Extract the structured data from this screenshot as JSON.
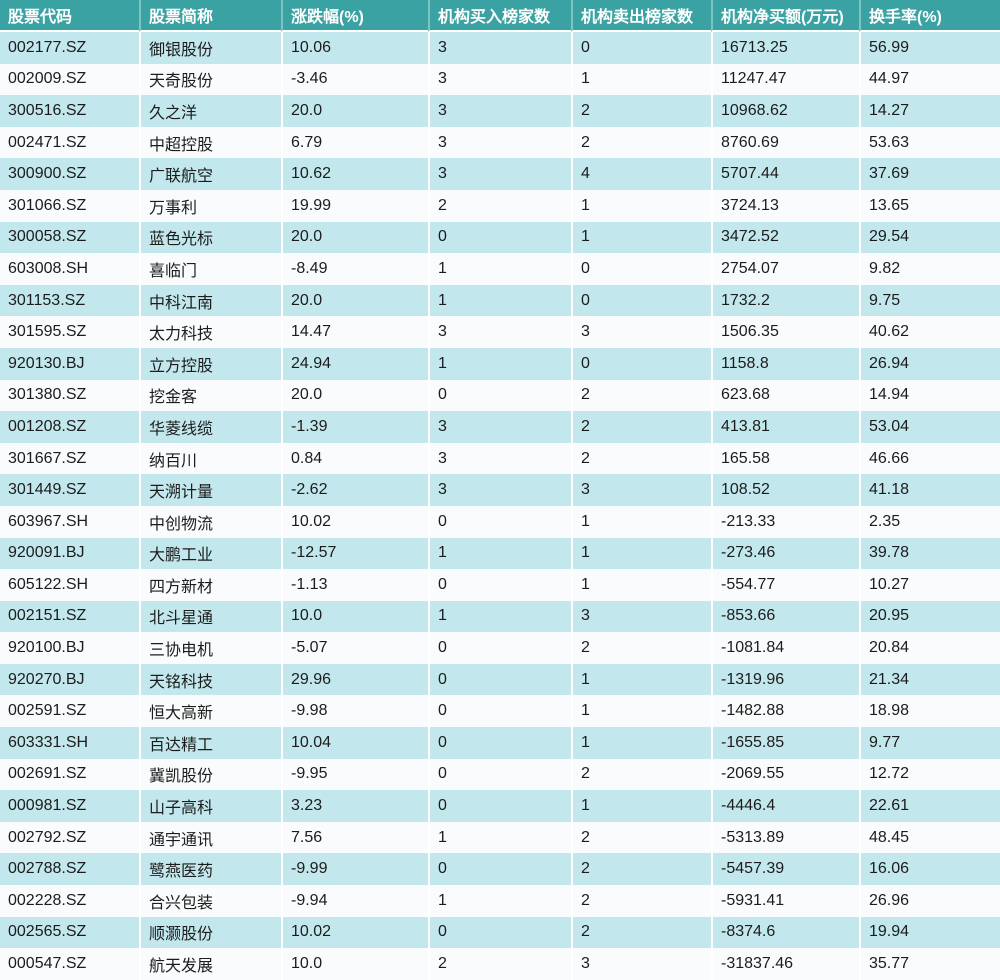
{
  "colors": {
    "header_bg": "#3aa2a2",
    "header_text": "#ffffff",
    "row_odd_bg": "#c2e7ec",
    "row_even_bg": "#f9fbfc",
    "body_text": "#1c1c1c",
    "cell_sep": "#ffffff"
  },
  "chart_data": {
    "type": "table",
    "title": "",
    "columns": [
      "股票代码",
      "股票简称",
      "涨跌幅(%)",
      "机构买入榜家数",
      "机构卖出榜家数",
      "机构净买额(万元)",
      "换手率(%)"
    ],
    "rows": [
      [
        "002177.SZ",
        "御银股份",
        "10.06",
        "3",
        "0",
        "16713.25",
        "56.99"
      ],
      [
        "002009.SZ",
        "天奇股份",
        "-3.46",
        "3",
        "1",
        "11247.47",
        "44.97"
      ],
      [
        "300516.SZ",
        "久之洋",
        "20.0",
        "3",
        "2",
        "10968.62",
        "14.27"
      ],
      [
        "002471.SZ",
        "中超控股",
        "6.79",
        "3",
        "2",
        "8760.69",
        "53.63"
      ],
      [
        "300900.SZ",
        "广联航空",
        "10.62",
        "3",
        "4",
        "5707.44",
        "37.69"
      ],
      [
        "301066.SZ",
        "万事利",
        "19.99",
        "2",
        "1",
        "3724.13",
        "13.65"
      ],
      [
        "300058.SZ",
        "蓝色光标",
        "20.0",
        "0",
        "1",
        "3472.52",
        "29.54"
      ],
      [
        "603008.SH",
        "喜临门",
        "-8.49",
        "1",
        "0",
        "2754.07",
        "9.82"
      ],
      [
        "301153.SZ",
        "中科江南",
        "20.0",
        "1",
        "0",
        "1732.2",
        "9.75"
      ],
      [
        "301595.SZ",
        "太力科技",
        "14.47",
        "3",
        "3",
        "1506.35",
        "40.62"
      ],
      [
        "920130.BJ",
        "立方控股",
        "24.94",
        "1",
        "0",
        "1158.8",
        "26.94"
      ],
      [
        "301380.SZ",
        "挖金客",
        "20.0",
        "0",
        "2",
        "623.68",
        "14.94"
      ],
      [
        "001208.SZ",
        "华菱线缆",
        "-1.39",
        "3",
        "2",
        "413.81",
        "53.04"
      ],
      [
        "301667.SZ",
        "纳百川",
        "0.84",
        "3",
        "2",
        "165.58",
        "46.66"
      ],
      [
        "301449.SZ",
        "天溯计量",
        "-2.62",
        "3",
        "3",
        "108.52",
        "41.18"
      ],
      [
        "603967.SH",
        "中创物流",
        "10.02",
        "0",
        "1",
        "-213.33",
        "2.35"
      ],
      [
        "920091.BJ",
        "大鹏工业",
        "-12.57",
        "1",
        "1",
        "-273.46",
        "39.78"
      ],
      [
        "605122.SH",
        "四方新材",
        "-1.13",
        "0",
        "1",
        "-554.77",
        "10.27"
      ],
      [
        "002151.SZ",
        "北斗星通",
        "10.0",
        "1",
        "3",
        "-853.66",
        "20.95"
      ],
      [
        "920100.BJ",
        "三协电机",
        "-5.07",
        "0",
        "2",
        "-1081.84",
        "20.84"
      ],
      [
        "920270.BJ",
        "天铭科技",
        "29.96",
        "0",
        "1",
        "-1319.96",
        "21.34"
      ],
      [
        "002591.SZ",
        "恒大高新",
        "-9.98",
        "0",
        "1",
        "-1482.88",
        "18.98"
      ],
      [
        "603331.SH",
        "百达精工",
        "10.04",
        "0",
        "1",
        "-1655.85",
        "9.77"
      ],
      [
        "002691.SZ",
        "冀凯股份",
        "-9.95",
        "0",
        "2",
        "-2069.55",
        "12.72"
      ],
      [
        "000981.SZ",
        "山子高科",
        "3.23",
        "0",
        "1",
        "-4446.4",
        "22.61"
      ],
      [
        "002792.SZ",
        "通宇通讯",
        "7.56",
        "1",
        "2",
        "-5313.89",
        "48.45"
      ],
      [
        "002788.SZ",
        "鹭燕医药",
        "-9.99",
        "0",
        "2",
        "-5457.39",
        "16.06"
      ],
      [
        "002228.SZ",
        "合兴包装",
        "-9.94",
        "1",
        "2",
        "-5931.41",
        "26.96"
      ],
      [
        "002565.SZ",
        "顺灏股份",
        "10.02",
        "0",
        "2",
        "-8374.6",
        "19.94"
      ],
      [
        "000547.SZ",
        "航天发展",
        "10.0",
        "2",
        "3",
        "-31837.46",
        "35.77"
      ]
    ]
  }
}
